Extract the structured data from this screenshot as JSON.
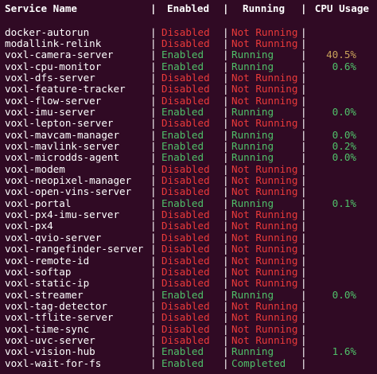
{
  "colors": {
    "background": "#300a24",
    "text": "#ffffff",
    "enabled": "#4fc069",
    "disabled": "#ea3a3a",
    "cpu_high": "#c8a15a"
  },
  "header": {
    "service": "Service Name",
    "enabled": "Enabled",
    "running": "Running",
    "cpu": "CPU Usage",
    "separator": "|"
  },
  "rows": [
    {
      "name": "docker-autorun",
      "enabled": "Disabled",
      "running": "Not Running",
      "cpu": ""
    },
    {
      "name": "modallink-relink",
      "enabled": "Disabled",
      "running": "Not Running",
      "cpu": ""
    },
    {
      "name": "voxl-camera-server",
      "enabled": "Enabled",
      "running": "Running",
      "cpu": "40.5%"
    },
    {
      "name": "voxl-cpu-monitor",
      "enabled": "Enabled",
      "running": "Running",
      "cpu": "0.6%"
    },
    {
      "name": "voxl-dfs-server",
      "enabled": "Disabled",
      "running": "Not Running",
      "cpu": ""
    },
    {
      "name": "voxl-feature-tracker",
      "enabled": "Disabled",
      "running": "Not Running",
      "cpu": ""
    },
    {
      "name": "voxl-flow-server",
      "enabled": "Disabled",
      "running": "Not Running",
      "cpu": ""
    },
    {
      "name": "voxl-imu-server",
      "enabled": "Enabled",
      "running": "Running",
      "cpu": "0.0%"
    },
    {
      "name": "voxl-lepton-server",
      "enabled": "Disabled",
      "running": "Not Running",
      "cpu": ""
    },
    {
      "name": "voxl-mavcam-manager",
      "enabled": "Enabled",
      "running": "Running",
      "cpu": "0.0%"
    },
    {
      "name": "voxl-mavlink-server",
      "enabled": "Enabled",
      "running": "Running",
      "cpu": "0.2%"
    },
    {
      "name": "voxl-microdds-agent",
      "enabled": "Enabled",
      "running": "Running",
      "cpu": "0.0%"
    },
    {
      "name": "voxl-modem",
      "enabled": "Disabled",
      "running": "Not Running",
      "cpu": ""
    },
    {
      "name": "voxl-neopixel-manager",
      "enabled": "Disabled",
      "running": "Not Running",
      "cpu": ""
    },
    {
      "name": "voxl-open-vins-server",
      "enabled": "Disabled",
      "running": "Not Running",
      "cpu": ""
    },
    {
      "name": "voxl-portal",
      "enabled": "Enabled",
      "running": "Running",
      "cpu": "0.1%"
    },
    {
      "name": "voxl-px4-imu-server",
      "enabled": "Disabled",
      "running": "Not Running",
      "cpu": ""
    },
    {
      "name": "voxl-px4",
      "enabled": "Disabled",
      "running": "Not Running",
      "cpu": ""
    },
    {
      "name": "voxl-qvio-server",
      "enabled": "Disabled",
      "running": "Not Running",
      "cpu": ""
    },
    {
      "name": "voxl-rangefinder-server",
      "enabled": "Disabled",
      "running": "Not Running",
      "cpu": ""
    },
    {
      "name": "voxl-remote-id",
      "enabled": "Disabled",
      "running": "Not Running",
      "cpu": ""
    },
    {
      "name": "voxl-softap",
      "enabled": "Disabled",
      "running": "Not Running",
      "cpu": ""
    },
    {
      "name": "voxl-static-ip",
      "enabled": "Disabled",
      "running": "Not Running",
      "cpu": ""
    },
    {
      "name": "voxl-streamer",
      "enabled": "Enabled",
      "running": "Running",
      "cpu": "0.0%"
    },
    {
      "name": "voxl-tag-detector",
      "enabled": "Disabled",
      "running": "Not Running",
      "cpu": ""
    },
    {
      "name": "voxl-tflite-server",
      "enabled": "Disabled",
      "running": "Not Running",
      "cpu": ""
    },
    {
      "name": "voxl-time-sync",
      "enabled": "Disabled",
      "running": "Not Running",
      "cpu": ""
    },
    {
      "name": "voxl-uvc-server",
      "enabled": "Disabled",
      "running": "Not Running",
      "cpu": ""
    },
    {
      "name": "voxl-vision-hub",
      "enabled": "Enabled",
      "running": "Running",
      "cpu": "1.6%"
    },
    {
      "name": "voxl-wait-for-fs",
      "enabled": "Enabled",
      "running": "Completed",
      "cpu": ""
    }
  ]
}
